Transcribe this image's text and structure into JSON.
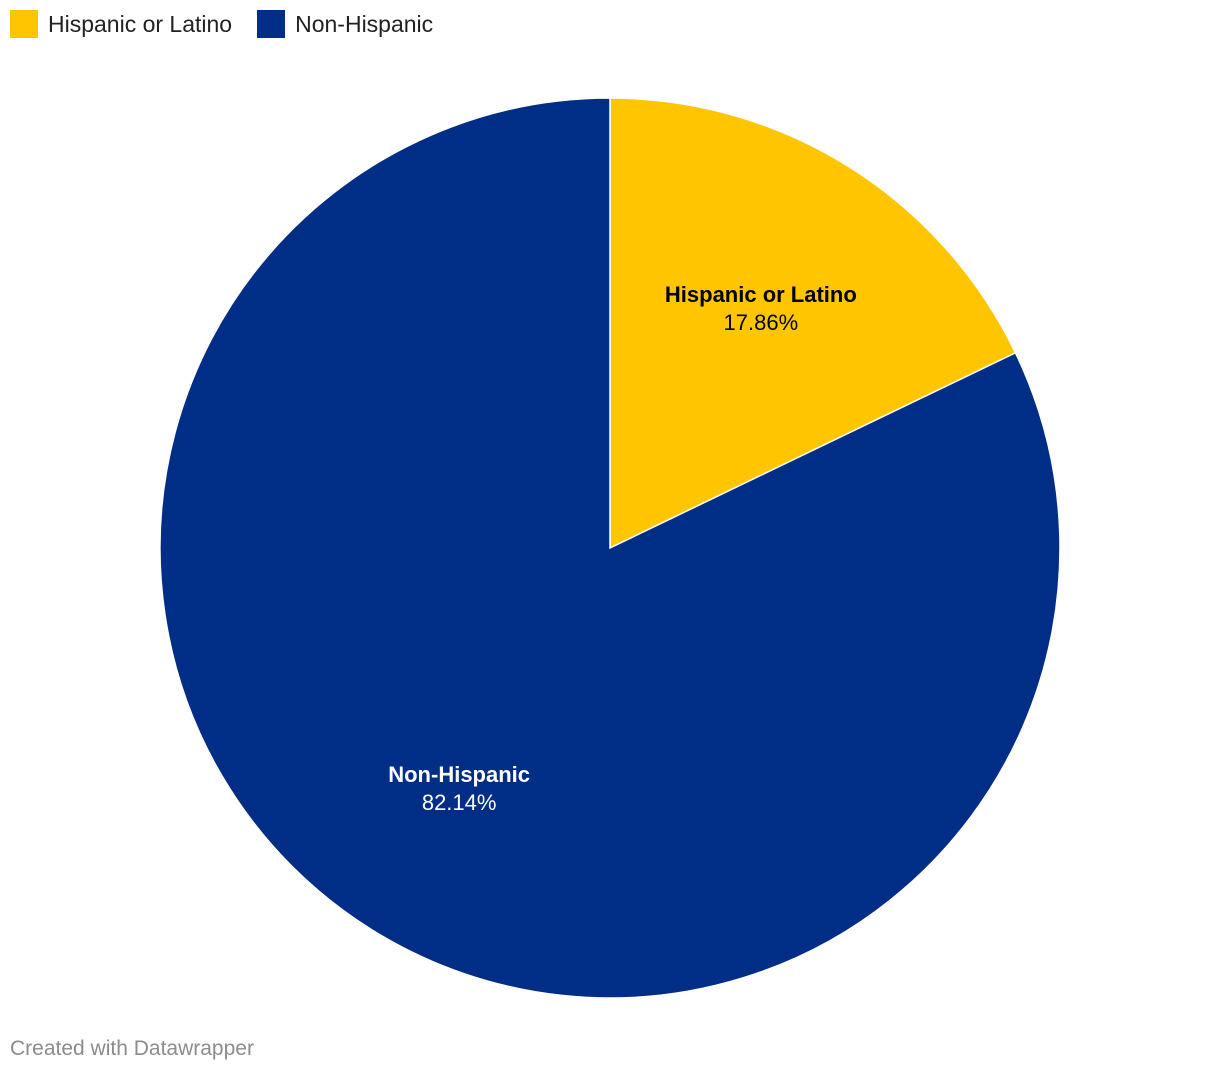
{
  "chart_data": {
    "type": "pie",
    "slices": [
      {
        "label": "Hispanic or Latino",
        "value": 17.86,
        "value_label": "17.86%",
        "color": "#ffc600",
        "text_color": "#000000"
      },
      {
        "label": "Non-Hispanic",
        "value": 82.14,
        "value_label": "82.14%",
        "color": "#002d86",
        "text_color": "#ffffff"
      }
    ],
    "legend": {
      "position": "top-left",
      "items": [
        {
          "label": "Hispanic or Latino",
          "color": "#ffc600"
        },
        {
          "label": "Non-Hispanic",
          "color": "#002d86"
        }
      ]
    },
    "title": "",
    "start_angle": "12 o'clock, clockwise"
  },
  "footer": {
    "credit": "Created with Datawrapper"
  }
}
